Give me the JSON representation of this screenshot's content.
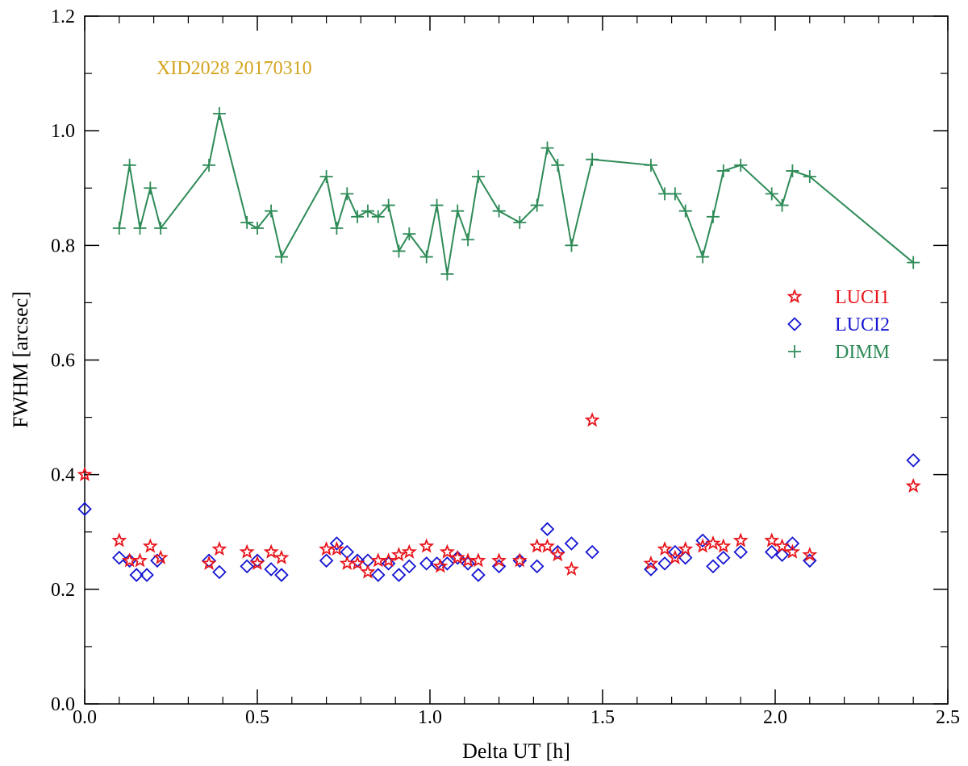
{
  "chart_data": {
    "type": "scatter",
    "title": "",
    "annotation": "XID2028 20170310",
    "xlabel": "Delta UT [h]",
    "ylabel": "FWHM [arcsec]",
    "xlim": [
      0.0,
      2.5
    ],
    "ylim": [
      0.0,
      1.2
    ],
    "x_ticks": [
      "0.0",
      "0.5",
      "1.0",
      "1.5",
      "2.0",
      "2.5"
    ],
    "y_ticks": [
      "0.0",
      "0.2",
      "0.4",
      "0.6",
      "0.8",
      "1.0",
      "1.2"
    ],
    "grid": false,
    "legend_position": "right",
    "colors": {
      "luci1": "#e8141b",
      "luci2": "#1414d2",
      "dimm": "#2e8b57",
      "annotation": "#d4a41f"
    },
    "series": [
      {
        "name": "LUCI1",
        "marker": "star",
        "x": [
          0.0,
          0.1,
          0.13,
          0.16,
          0.19,
          0.22,
          0.36,
          0.39,
          0.47,
          0.5,
          0.54,
          0.57,
          0.7,
          0.73,
          0.76,
          0.79,
          0.82,
          0.85,
          0.88,
          0.91,
          0.94,
          0.99,
          1.03,
          1.05,
          1.08,
          1.11,
          1.14,
          1.2,
          1.26,
          1.31,
          1.34,
          1.37,
          1.41,
          1.47,
          1.64,
          1.68,
          1.71,
          1.74,
          1.79,
          1.82,
          1.85,
          1.9,
          1.99,
          2.02,
          2.05,
          2.1,
          2.4
        ],
        "y": [
          0.4,
          0.285,
          0.25,
          0.25,
          0.275,
          0.255,
          0.245,
          0.27,
          0.265,
          0.245,
          0.265,
          0.255,
          0.27,
          0.27,
          0.245,
          0.245,
          0.23,
          0.25,
          0.25,
          0.26,
          0.265,
          0.275,
          0.24,
          0.265,
          0.255,
          0.25,
          0.25,
          0.25,
          0.25,
          0.275,
          0.275,
          0.26,
          0.235,
          0.495,
          0.245,
          0.27,
          0.255,
          0.27,
          0.275,
          0.28,
          0.275,
          0.285,
          0.285,
          0.275,
          0.265,
          0.26,
          0.38
        ]
      },
      {
        "name": "LUCI2",
        "marker": "diamond",
        "x": [
          0.0,
          0.1,
          0.13,
          0.15,
          0.18,
          0.21,
          0.36,
          0.39,
          0.47,
          0.5,
          0.54,
          0.57,
          0.7,
          0.73,
          0.76,
          0.79,
          0.82,
          0.85,
          0.88,
          0.91,
          0.94,
          0.99,
          1.02,
          1.05,
          1.08,
          1.11,
          1.14,
          1.2,
          1.26,
          1.31,
          1.34,
          1.37,
          1.41,
          1.47,
          1.64,
          1.68,
          1.71,
          1.74,
          1.79,
          1.82,
          1.85,
          1.9,
          1.99,
          2.02,
          2.05,
          2.1,
          2.4
        ],
        "y": [
          0.34,
          0.255,
          0.25,
          0.225,
          0.225,
          0.25,
          0.25,
          0.23,
          0.24,
          0.25,
          0.235,
          0.225,
          0.25,
          0.28,
          0.265,
          0.25,
          0.25,
          0.225,
          0.245,
          0.225,
          0.24,
          0.245,
          0.245,
          0.245,
          0.255,
          0.245,
          0.225,
          0.24,
          0.25,
          0.24,
          0.305,
          0.265,
          0.28,
          0.265,
          0.235,
          0.245,
          0.265,
          0.255,
          0.285,
          0.24,
          0.255,
          0.265,
          0.265,
          0.26,
          0.28,
          0.25,
          0.425
        ]
      },
      {
        "name": "DIMM",
        "marker": "plus",
        "line": true,
        "x": [
          0.1,
          0.13,
          0.16,
          0.19,
          0.22,
          0.36,
          0.39,
          0.47,
          0.5,
          0.54,
          0.57,
          0.7,
          0.73,
          0.76,
          0.79,
          0.82,
          0.85,
          0.88,
          0.91,
          0.94,
          0.99,
          1.02,
          1.05,
          1.08,
          1.11,
          1.14,
          1.2,
          1.26,
          1.31,
          1.34,
          1.37,
          1.41,
          1.47,
          1.64,
          1.68,
          1.71,
          1.74,
          1.79,
          1.82,
          1.85,
          1.9,
          1.99,
          2.02,
          2.05,
          2.1,
          2.4
        ],
        "y": [
          0.83,
          0.94,
          0.83,
          0.9,
          0.83,
          0.94,
          1.03,
          0.84,
          0.83,
          0.86,
          0.78,
          0.92,
          0.83,
          0.89,
          0.85,
          0.86,
          0.85,
          0.87,
          0.79,
          0.82,
          0.78,
          0.87,
          0.75,
          0.86,
          0.81,
          0.92,
          0.86,
          0.84,
          0.87,
          0.97,
          0.94,
          0.8,
          0.95,
          0.94,
          0.89,
          0.89,
          0.86,
          0.78,
          0.85,
          0.93,
          0.94,
          0.89,
          0.87,
          0.93,
          0.92,
          0.77
        ]
      }
    ]
  }
}
